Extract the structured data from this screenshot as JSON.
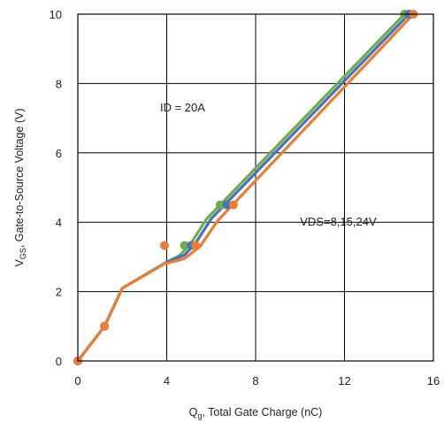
{
  "chart_data": {
    "type": "line",
    "xlabel": {
      "main": "Q",
      "sub": "g",
      "rest": ", Total Gate Charge (nC)"
    },
    "ylabel": {
      "main": "V",
      "sub": "GS",
      "rest": ", Gate-to-Source Voltage (V)"
    },
    "xlim": [
      0,
      16
    ],
    "ylim": [
      0,
      10
    ],
    "xticks": [
      0,
      4,
      8,
      12,
      16
    ],
    "yticks": [
      0,
      2,
      4,
      6,
      8,
      10
    ],
    "grid": true,
    "annotations": [
      {
        "text": "ID = 20A",
        "x": 3.7,
        "y": 7.2
      },
      {
        "text": "VDS=8,15,24V",
        "x": 10.0,
        "y": 3.9
      }
    ],
    "series": [
      {
        "color": "#70AD47",
        "line": [
          [
            0,
            0
          ],
          [
            1.2,
            1.0
          ],
          [
            2.0,
            2.1
          ],
          [
            4.0,
            2.85
          ],
          [
            4.6,
            3.05
          ],
          [
            5.1,
            3.4
          ],
          [
            5.8,
            4.1
          ],
          [
            14.7,
            10.0
          ]
        ],
        "points": [
          [
            0,
            0
          ],
          [
            1.2,
            1.0
          ],
          [
            4.8,
            3.33
          ],
          [
            6.4,
            4.5
          ],
          [
            14.7,
            10.0
          ]
        ]
      },
      {
        "color": "#4472C4",
        "line": [
          [
            0,
            0
          ],
          [
            1.2,
            1.0
          ],
          [
            2.0,
            2.1
          ],
          [
            4.0,
            2.85
          ],
          [
            4.8,
            3.05
          ],
          [
            5.3,
            3.4
          ],
          [
            6.0,
            4.1
          ],
          [
            14.9,
            10.0
          ]
        ],
        "points": [
          [
            0,
            0
          ],
          [
            1.2,
            1.0
          ],
          [
            5.1,
            3.33
          ],
          [
            6.7,
            4.5
          ],
          [
            14.9,
            10.0
          ]
        ]
      },
      {
        "color": "#ED7D31",
        "line": [
          [
            0,
            0
          ],
          [
            1.2,
            1.0
          ],
          [
            2.0,
            2.1
          ],
          [
            3.9,
            2.8
          ],
          [
            4.8,
            2.95
          ],
          [
            5.5,
            3.3
          ],
          [
            6.3,
            4.05
          ],
          [
            15.1,
            10.0
          ]
        ],
        "points": [
          [
            0,
            0
          ],
          [
            1.2,
            1.0
          ],
          [
            3.9,
            3.33
          ],
          [
            5.3,
            3.33
          ],
          [
            7.0,
            4.5
          ],
          [
            15.1,
            10.0
          ]
        ]
      }
    ]
  }
}
